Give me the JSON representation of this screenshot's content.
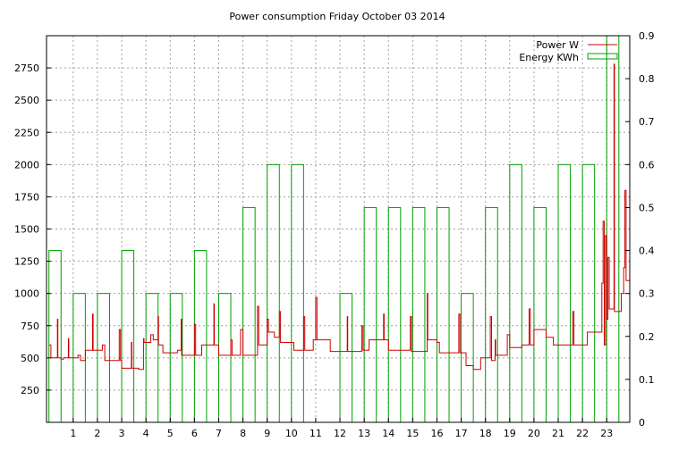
{
  "chart_data": {
    "type": "bar",
    "title": "Power consumption Friday October 03 2014",
    "xlabel": "",
    "ylabel": "",
    "y2label": "",
    "grid": true,
    "legend_position": "top-right",
    "x_ticks": [
      "1",
      "2",
      "3",
      "4",
      "5",
      "6",
      "7",
      "8",
      "9",
      "10",
      "11",
      "12",
      "13",
      "14",
      "15",
      "16",
      "17",
      "18",
      "19",
      "20",
      "21",
      "22",
      "23"
    ],
    "xlim": [
      -0.1,
      23.95
    ],
    "y_left": {
      "ylim": [
        0,
        3000
      ],
      "ticks": [
        "250",
        "500",
        "750",
        "1000",
        "1250",
        "1500",
        "1750",
        "2000",
        "2250",
        "2500",
        "2750"
      ]
    },
    "y_right": {
      "ylim": [
        0,
        0.9
      ],
      "ticks": [
        "0",
        "0.1",
        "0.2",
        "0.3",
        "0.4",
        "0.5",
        "0.6",
        "0.7",
        "0.8",
        "0.9"
      ]
    },
    "series": [
      {
        "name": "Power W",
        "axis": "left",
        "color": "#cc0000",
        "style": "step",
        "points": [
          [
            0,
            600
          ],
          [
            0.08,
            500
          ],
          [
            0.3,
            500
          ],
          [
            0.35,
            800
          ],
          [
            0.37,
            500
          ],
          [
            0.5,
            490
          ],
          [
            0.6,
            500
          ],
          [
            0.8,
            650
          ],
          [
            0.82,
            500
          ],
          [
            1.2,
            520
          ],
          [
            1.3,
            480
          ],
          [
            1.5,
            560
          ],
          [
            1.6,
            560
          ],
          [
            1.8,
            840
          ],
          [
            1.82,
            560
          ],
          [
            2.2,
            600
          ],
          [
            2.3,
            480
          ],
          [
            2.5,
            480
          ],
          [
            2.9,
            720
          ],
          [
            2.95,
            480
          ],
          [
            3.0,
            420
          ],
          [
            3.4,
            620
          ],
          [
            3.42,
            420
          ],
          [
            3.7,
            410
          ],
          [
            3.9,
            650
          ],
          [
            3.92,
            620
          ],
          [
            4.2,
            680
          ],
          [
            4.3,
            640
          ],
          [
            4.5,
            820
          ],
          [
            4.52,
            600
          ],
          [
            4.7,
            540
          ],
          [
            5.0,
            540
          ],
          [
            5.3,
            560
          ],
          [
            5.45,
            800
          ],
          [
            5.47,
            520
          ],
          [
            5.8,
            520
          ],
          [
            6.0,
            760
          ],
          [
            6.05,
            520
          ],
          [
            6.3,
            600
          ],
          [
            6.8,
            920
          ],
          [
            6.82,
            600
          ],
          [
            7.0,
            520
          ],
          [
            7.5,
            640
          ],
          [
            7.55,
            520
          ],
          [
            7.9,
            720
          ],
          [
            8.0,
            520
          ],
          [
            8.2,
            520
          ],
          [
            8.6,
            900
          ],
          [
            8.65,
            600
          ],
          [
            9.0,
            800
          ],
          [
            9.05,
            700
          ],
          [
            9.3,
            660
          ],
          [
            9.5,
            860
          ],
          [
            9.55,
            620
          ],
          [
            10.0,
            620
          ],
          [
            10.1,
            560
          ],
          [
            10.5,
            820
          ],
          [
            10.55,
            560
          ],
          [
            10.9,
            640
          ],
          [
            11.0,
            970
          ],
          [
            11.05,
            640
          ],
          [
            11.5,
            640
          ],
          [
            11.6,
            550
          ],
          [
            11.8,
            550
          ],
          [
            12.3,
            820
          ],
          [
            12.32,
            550
          ],
          [
            12.9,
            750
          ],
          [
            12.95,
            560
          ],
          [
            13.2,
            640
          ],
          [
            13.5,
            640
          ],
          [
            13.8,
            840
          ],
          [
            13.82,
            640
          ],
          [
            14.0,
            560
          ],
          [
            14.5,
            560
          ],
          [
            14.9,
            820
          ],
          [
            14.95,
            550
          ],
          [
            15.3,
            550
          ],
          [
            15.6,
            1000
          ],
          [
            15.62,
            640
          ],
          [
            16.0,
            620
          ],
          [
            16.1,
            540
          ],
          [
            16.5,
            540
          ],
          [
            16.9,
            840
          ],
          [
            16.95,
            540
          ],
          [
            17.2,
            440
          ],
          [
            17.4,
            440
          ],
          [
            17.5,
            410
          ],
          [
            17.7,
            410
          ],
          [
            17.8,
            500
          ],
          [
            18.0,
            500
          ],
          [
            18.2,
            820
          ],
          [
            18.25,
            480
          ],
          [
            18.4,
            640
          ],
          [
            18.42,
            520
          ],
          [
            18.8,
            520
          ],
          [
            18.9,
            680
          ],
          [
            19.0,
            580
          ],
          [
            19.5,
            600
          ],
          [
            19.8,
            880
          ],
          [
            19.85,
            600
          ],
          [
            20.0,
            720
          ],
          [
            20.3,
            720
          ],
          [
            20.5,
            660
          ],
          [
            20.8,
            600
          ],
          [
            21.2,
            600
          ],
          [
            21.6,
            860
          ],
          [
            21.65,
            600
          ],
          [
            22.0,
            600
          ],
          [
            22.2,
            700
          ],
          [
            22.7,
            700
          ],
          [
            22.8,
            1080
          ],
          [
            22.85,
            1560
          ],
          [
            22.9,
            600
          ],
          [
            22.95,
            1450
          ],
          [
            23.0,
            800
          ],
          [
            23.05,
            1280
          ],
          [
            23.1,
            880
          ],
          [
            23.3,
            2780
          ],
          [
            23.32,
            860
          ],
          [
            23.5,
            860
          ],
          [
            23.6,
            1000
          ],
          [
            23.7,
            1200
          ],
          [
            23.75,
            1800
          ],
          [
            23.8,
            1100
          ],
          [
            23.95,
            1050
          ]
        ]
      },
      {
        "name": "Energy KWh",
        "axis": "right",
        "color": "#00a000",
        "style": "bar",
        "bar_width": 0.5,
        "x": [
          0,
          1,
          2,
          3,
          4,
          5,
          6,
          7,
          8,
          9,
          10,
          11,
          12,
          13,
          14,
          15,
          16,
          17,
          18,
          19,
          20,
          21,
          22,
          23
        ],
        "values": [
          0.4,
          0.3,
          0.3,
          0.4,
          0.3,
          0.3,
          0.4,
          0.3,
          0.5,
          0.6,
          0.6,
          0,
          0.3,
          0.5,
          0.5,
          0.5,
          0.5,
          0.3,
          0.5,
          0.6,
          0.5,
          0.6,
          0.6,
          0.9
        ]
      }
    ]
  }
}
